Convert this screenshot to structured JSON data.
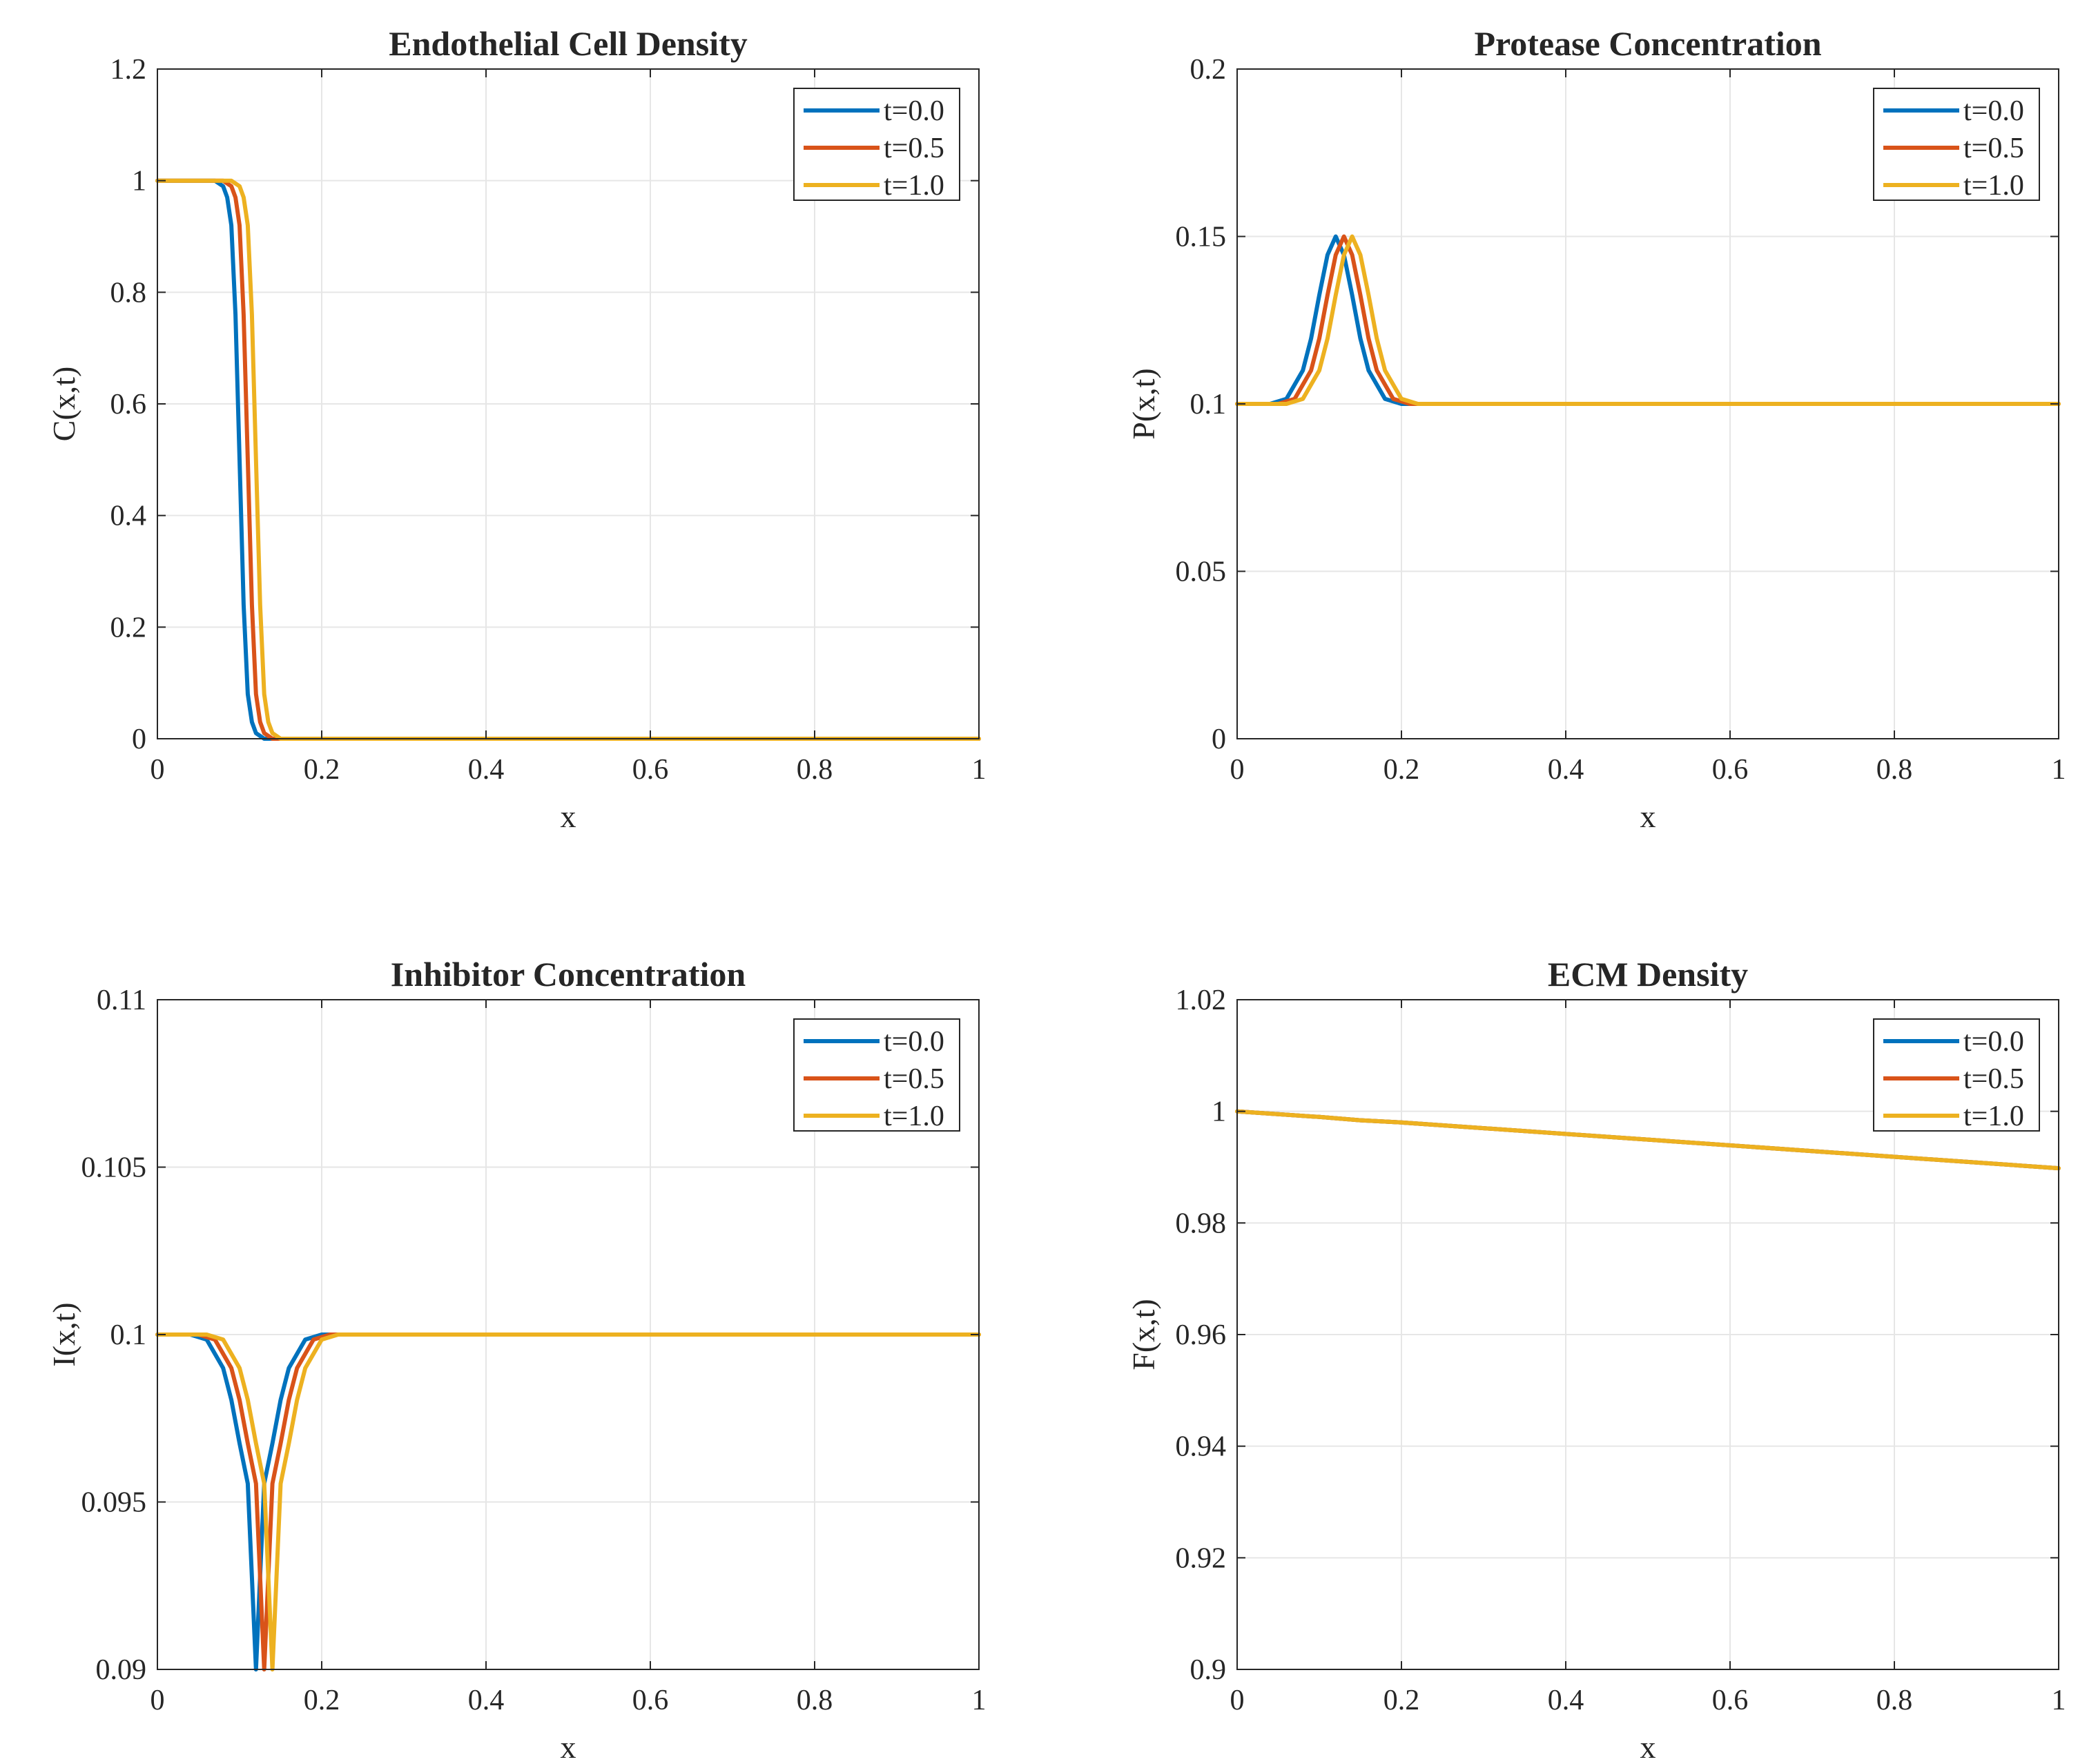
{
  "figure": {
    "legend_entries": [
      "t=0.0",
      "t=0.5",
      "t=1.0"
    ]
  },
  "colors": {
    "t0": "#0072BD",
    "t05": "#D95319",
    "t1": "#EDB120",
    "grid": "#e6e6e6",
    "axis": "#262626"
  },
  "chart_data": [
    {
      "type": "line",
      "title": "Endothelial Cell Density",
      "xlabel": "x",
      "ylabel": "C(x,t)",
      "xlim": [
        0,
        1
      ],
      "ylim": [
        0,
        1.2
      ],
      "xticks": [
        0,
        0.2,
        0.4,
        0.6,
        0.8,
        1
      ],
      "xtick_labels": [
        "0",
        "0.2",
        "0.4",
        "0.6",
        "0.8",
        "1"
      ],
      "yticks": [
        0,
        0.2,
        0.4,
        0.6,
        0.8,
        1,
        1.2
      ],
      "ytick_labels": [
        "0",
        "0.2",
        "0.4",
        "0.6",
        "0.8",
        "1",
        "1.2"
      ],
      "grid": true,
      "legend": "top-right",
      "series": [
        {
          "name": "t=0.0",
          "x": [
            0,
            0.07,
            0.08,
            0.085,
            0.09,
            0.095,
            0.1,
            0.105,
            0.11,
            0.115,
            0.12,
            0.13,
            0.15,
            1
          ],
          "y": [
            1,
            1,
            0.99,
            0.97,
            0.92,
            0.76,
            0.5,
            0.24,
            0.08,
            0.03,
            0.01,
            0,
            0,
            0
          ]
        },
        {
          "name": "t=0.5",
          "x": [
            0,
            0.08,
            0.09,
            0.095,
            0.1,
            0.105,
            0.11,
            0.115,
            0.12,
            0.125,
            0.13,
            0.14,
            0.16,
            1
          ],
          "y": [
            1,
            1,
            0.99,
            0.97,
            0.92,
            0.76,
            0.5,
            0.24,
            0.08,
            0.03,
            0.01,
            0,
            0,
            0
          ]
        },
        {
          "name": "t=1.0",
          "x": [
            0,
            0.09,
            0.1,
            0.105,
            0.11,
            0.115,
            0.12,
            0.125,
            0.13,
            0.135,
            0.14,
            0.15,
            0.17,
            1
          ],
          "y": [
            1,
            1,
            0.99,
            0.97,
            0.92,
            0.76,
            0.5,
            0.24,
            0.08,
            0.03,
            0.01,
            0,
            0,
            0
          ]
        }
      ]
    },
    {
      "type": "line",
      "title": "Protease Concentration",
      "xlabel": "x",
      "ylabel": "P(x,t)",
      "xlim": [
        0,
        1
      ],
      "ylim": [
        0,
        0.2
      ],
      "xticks": [
        0,
        0.2,
        0.4,
        0.6,
        0.8,
        1
      ],
      "xtick_labels": [
        "0",
        "0.2",
        "0.4",
        "0.6",
        "0.8",
        "1"
      ],
      "yticks": [
        0,
        0.05,
        0.1,
        0.15,
        0.2
      ],
      "ytick_labels": [
        "0",
        "0.05",
        "0.1",
        "0.15",
        "0.2"
      ],
      "grid": true,
      "legend": "top-right",
      "series": [
        {
          "name": "t=0.0",
          "x": [
            0,
            0.04,
            0.06,
            0.08,
            0.09,
            0.1,
            0.11,
            0.12,
            0.13,
            0.14,
            0.15,
            0.16,
            0.18,
            0.2,
            1
          ],
          "y": [
            0.1,
            0.1,
            0.1015,
            0.11,
            0.1195,
            0.1325,
            0.1445,
            0.15,
            0.1445,
            0.1325,
            0.1195,
            0.11,
            0.1015,
            0.1,
            0.1
          ]
        },
        {
          "name": "t=0.5",
          "x": [
            0,
            0.05,
            0.07,
            0.09,
            0.1,
            0.11,
            0.12,
            0.13,
            0.14,
            0.15,
            0.16,
            0.17,
            0.19,
            0.21,
            1
          ],
          "y": [
            0.1,
            0.1,
            0.1015,
            0.11,
            0.1195,
            0.1325,
            0.1445,
            0.15,
            0.1445,
            0.1325,
            0.1195,
            0.11,
            0.1015,
            0.1,
            0.1
          ]
        },
        {
          "name": "t=1.0",
          "x": [
            0,
            0.06,
            0.08,
            0.1,
            0.11,
            0.12,
            0.13,
            0.14,
            0.15,
            0.16,
            0.17,
            0.18,
            0.2,
            0.22,
            1
          ],
          "y": [
            0.1,
            0.1,
            0.1015,
            0.11,
            0.1195,
            0.1325,
            0.1445,
            0.15,
            0.1445,
            0.1325,
            0.1195,
            0.11,
            0.1015,
            0.1,
            0.1
          ]
        }
      ]
    },
    {
      "type": "line",
      "title": "Inhibitor Concentration",
      "xlabel": "x",
      "ylabel": "I(x,t)",
      "xlim": [
        0,
        1
      ],
      "ylim": [
        0.09,
        0.11
      ],
      "xticks": [
        0,
        0.2,
        0.4,
        0.6,
        0.8,
        1
      ],
      "xtick_labels": [
        "0",
        "0.2",
        "0.4",
        "0.6",
        "0.8",
        "1"
      ],
      "yticks": [
        0.09,
        0.095,
        0.1,
        0.105,
        0.11
      ],
      "ytick_labels": [
        "0.09",
        "0.095",
        "0.1",
        "0.105",
        "0.11"
      ],
      "grid": true,
      "legend": "top-right",
      "series": [
        {
          "name": "t=0.0",
          "x": [
            0,
            0.04,
            0.06,
            0.08,
            0.09,
            0.1,
            0.11,
            0.12,
            0.13,
            0.14,
            0.15,
            0.16,
            0.18,
            0.2,
            1
          ],
          "y": [
            0.1,
            0.1,
            0.09985,
            0.099,
            0.09805,
            0.09675,
            0.09555,
            0.09,
            0.09555,
            0.09675,
            0.09805,
            0.099,
            0.09985,
            0.1,
            0.1
          ]
        },
        {
          "name": "t=0.5",
          "x": [
            0,
            0.05,
            0.07,
            0.09,
            0.1,
            0.11,
            0.12,
            0.13,
            0.14,
            0.15,
            0.16,
            0.17,
            0.19,
            0.21,
            1
          ],
          "y": [
            0.1,
            0.1,
            0.09985,
            0.099,
            0.09805,
            0.09675,
            0.09555,
            0.09,
            0.09555,
            0.09675,
            0.09805,
            0.099,
            0.09985,
            0.1,
            0.1
          ]
        },
        {
          "name": "t=1.0",
          "x": [
            0,
            0.06,
            0.08,
            0.1,
            0.11,
            0.12,
            0.13,
            0.14,
            0.15,
            0.16,
            0.17,
            0.18,
            0.2,
            0.22,
            1
          ],
          "y": [
            0.1,
            0.1,
            0.09985,
            0.099,
            0.09805,
            0.09675,
            0.09555,
            0.09,
            0.09555,
            0.09675,
            0.09805,
            0.099,
            0.09985,
            0.1,
            0.1
          ]
        }
      ]
    },
    {
      "type": "line",
      "title": "ECM Density",
      "xlabel": "x",
      "ylabel": "F(x,t)",
      "xlim": [
        0,
        1
      ],
      "ylim": [
        0.9,
        1.02
      ],
      "xticks": [
        0,
        0.2,
        0.4,
        0.6,
        0.8,
        1
      ],
      "xtick_labels": [
        "0",
        "0.2",
        "0.4",
        "0.6",
        "0.8",
        "1"
      ],
      "yticks": [
        0.9,
        0.92,
        0.94,
        0.96,
        0.98,
        1,
        1.02
      ],
      "ytick_labels": [
        "0.9",
        "0.92",
        "0.94",
        "0.96",
        "0.98",
        "1",
        "1.02"
      ],
      "grid": true,
      "legend": "top-right",
      "series": [
        {
          "name": "t=0.0",
          "x": [
            0,
            0.1,
            0.15,
            0.2,
            1
          ],
          "y": [
            1,
            0.999,
            0.9984,
            0.998,
            0.9898
          ]
        },
        {
          "name": "t=0.5",
          "x": [
            0,
            0.1,
            0.15,
            0.2,
            1
          ],
          "y": [
            1,
            0.999,
            0.9984,
            0.998,
            0.9898
          ]
        },
        {
          "name": "t=1.0",
          "x": [
            0,
            0.1,
            0.15,
            0.2,
            1
          ],
          "y": [
            1,
            0.999,
            0.9984,
            0.998,
            0.9898
          ]
        }
      ]
    }
  ]
}
